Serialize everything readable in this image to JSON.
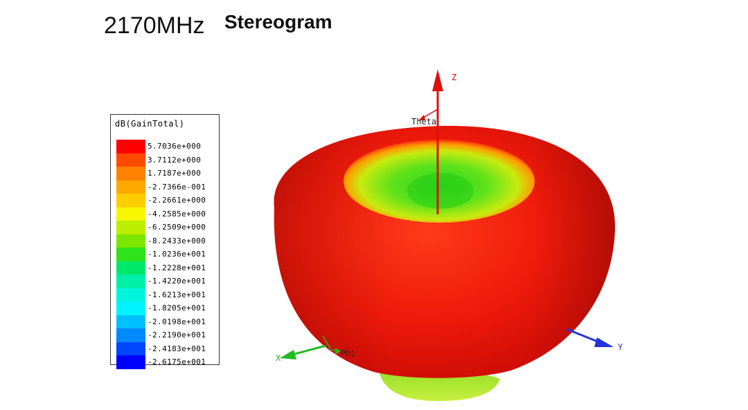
{
  "header": {
    "frequency": "2170MHz",
    "mode": "Stereogram"
  },
  "legend": {
    "title": "dB(GainTotal)",
    "entries": [
      {
        "value": "5.7036e+000",
        "color": "#ff0000"
      },
      {
        "value": "3.7112e+000",
        "color": "#ff4a00"
      },
      {
        "value": "1.7187e+000",
        "color": "#ff8200"
      },
      {
        "value": "-2.7366e-001",
        "color": "#ffa800"
      },
      {
        "value": "-2.2661e+000",
        "color": "#ffce00"
      },
      {
        "value": "-4.2585e+000",
        "color": "#f6f600"
      },
      {
        "value": "-6.2509e+000",
        "color": "#bdf000"
      },
      {
        "value": "-8.2433e+000",
        "color": "#7de600"
      },
      {
        "value": "-1.0236e+001",
        "color": "#2ee21c"
      },
      {
        "value": "-1.2228e+001",
        "color": "#00e86a"
      },
      {
        "value": "-1.4220e+001",
        "color": "#00f0a8"
      },
      {
        "value": "-1.6213e+001",
        "color": "#00f6dc"
      },
      {
        "value": "-1.8205e+001",
        "color": "#00f4ff"
      },
      {
        "value": "-2.0198e+001",
        "color": "#00c0ff"
      },
      {
        "value": "-2.2190e+001",
        "color": "#0088ff"
      },
      {
        "value": "-2.4183e+001",
        "color": "#0046ff"
      },
      {
        "value": "-2.6175e+001",
        "color": "#0000ff"
      }
    ]
  },
  "axes": {
    "z_label": "Z",
    "theta_label": "Theta",
    "x_label": "X",
    "phi_label": "Phi",
    "y_label": "Y",
    "z_color": "#dd1010",
    "x_color": "#22bb22",
    "y_color": "#2233dd"
  }
}
